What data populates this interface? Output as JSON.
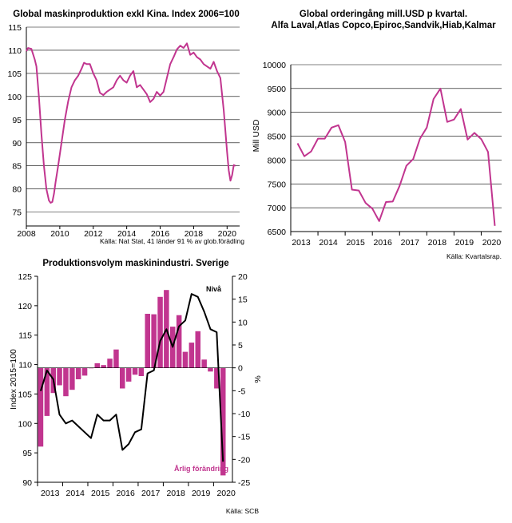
{
  "colors": {
    "magenta": "#c1358f",
    "black": "#000000",
    "axis": "#000000"
  },
  "chart_data": [
    {
      "type": "line",
      "title": "Global maskinproduktion exkl Kina. Index 2006=100",
      "source": "Källa: Nat Stat, 41 länder 91 % av glob.förädling",
      "xlim": [
        2008,
        2020.75
      ],
      "ylim": [
        72,
        115
      ],
      "x_ticks": [
        "2008",
        "2010",
        "2012",
        "2014",
        "2016",
        "2018",
        "2020"
      ],
      "x_tick_values": [
        2008,
        2010,
        2012,
        2014,
        2016,
        2018,
        2020
      ],
      "y_ticks": [
        "75",
        "80",
        "85",
        "90",
        "95",
        "100",
        "105",
        "110",
        "115"
      ],
      "y_tick_values": [
        75,
        80,
        85,
        90,
        95,
        100,
        105,
        110,
        115
      ],
      "series": [
        {
          "name": "Global maskinproduktion",
          "x": [
            2008.0,
            2008.1,
            2008.3,
            2008.5,
            2008.6,
            2008.75,
            2008.9,
            2009.05,
            2009.2,
            2009.35,
            2009.45,
            2009.55,
            2009.65,
            2009.75,
            2009.9,
            2010.1,
            2010.3,
            2010.5,
            2010.7,
            2010.9,
            2011.1,
            2011.3,
            2011.45,
            2011.6,
            2011.8,
            2012.0,
            2012.2,
            2012.4,
            2012.6,
            2012.8,
            2013.0,
            2013.2,
            2013.4,
            2013.6,
            2013.8,
            2014.0,
            2014.2,
            2014.4,
            2014.6,
            2014.8,
            2015.0,
            2015.2,
            2015.4,
            2015.6,
            2015.8,
            2016.0,
            2016.2,
            2016.4,
            2016.6,
            2016.8,
            2017.0,
            2017.2,
            2017.4,
            2017.6,
            2017.8,
            2018.0,
            2018.2,
            2018.4,
            2018.6,
            2018.8,
            2019.0,
            2019.2,
            2019.4,
            2019.6,
            2019.8,
            2020.0,
            2020.1,
            2020.2,
            2020.3,
            2020.4,
            2020.5
          ],
          "values": [
            109.8,
            110.5,
            110.3,
            108.0,
            106.5,
            100.0,
            92.0,
            85.0,
            80.0,
            77.5,
            77.0,
            77.2,
            79.0,
            81.5,
            85.0,
            90.0,
            95.0,
            99.0,
            102.0,
            103.5,
            104.5,
            106.0,
            107.3,
            107.0,
            107.0,
            105.0,
            103.5,
            100.8,
            100.3,
            101.0,
            101.5,
            102.0,
            103.5,
            104.5,
            103.5,
            103.0,
            104.5,
            105.5,
            102.0,
            102.5,
            101.5,
            100.5,
            98.8,
            99.5,
            101.0,
            100.2,
            101.0,
            104.0,
            107.0,
            108.5,
            110.2,
            111.0,
            110.5,
            111.5,
            109.0,
            109.5,
            108.5,
            108.0,
            107.0,
            106.5,
            106.0,
            107.5,
            105.5,
            104.0,
            97.0,
            88.0,
            84.0,
            81.8,
            83.0,
            85.2,
            85.0
          ]
        }
      ]
    },
    {
      "type": "line",
      "title_lines": [
        "Global orderingång mill.USD p kvartal.",
        "Alfa Laval,Atlas Copco,Epiroc,Sandvik,Hiab,Kalmar"
      ],
      "ylabel": "Mill USD",
      "source": "Källa: Kvartalsrap.",
      "xlim": [
        2012.75,
        2020.5
      ],
      "ylim": [
        6500,
        10000
      ],
      "x_ticks": [
        "2013",
        "2014",
        "2015",
        "2016",
        "2017",
        "2018",
        "2019",
        "2020"
      ],
      "x_tick_values": [
        2013.25,
        2014.25,
        2015.25,
        2016.25,
        2017.25,
        2018.25,
        2019.25,
        2020.25
      ],
      "y_ticks": [
        "6500",
        "7000",
        "7500",
        "8000",
        "8500",
        "9000",
        "9500",
        "10000"
      ],
      "y_tick_values": [
        6500,
        7000,
        7500,
        8000,
        8500,
        9000,
        9500,
        10000
      ],
      "series": [
        {
          "name": "Orderingång",
          "x": [
            2013.0,
            2013.25,
            2013.5,
            2013.75,
            2014.0,
            2014.25,
            2014.5,
            2014.75,
            2015.0,
            2015.25,
            2015.5,
            2015.75,
            2016.0,
            2016.25,
            2016.5,
            2016.75,
            2017.0,
            2017.25,
            2017.5,
            2017.75,
            2018.0,
            2018.25,
            2018.5,
            2018.75,
            2019.0,
            2019.25,
            2019.5,
            2019.75,
            2020.0,
            2020.25
          ],
          "values": [
            8350,
            8080,
            8180,
            8450,
            8450,
            8680,
            8730,
            8380,
            7380,
            7360,
            7100,
            6980,
            6720,
            7120,
            7130,
            7460,
            7880,
            8020,
            8450,
            8680,
            9280,
            9500,
            8800,
            8850,
            9070,
            8430,
            8570,
            8440,
            8170,
            6620
          ]
        }
      ]
    },
    {
      "type": "bar+line",
      "title": "Produktionsvolym maskinindustri. Sverige",
      "ylabel_left": "Index 2015=100",
      "ylabel_right": "%",
      "source": "Källa: SCB",
      "xlim": [
        2012.75,
        2020.5
      ],
      "ylim_left": [
        90,
        125
      ],
      "ylim_right": [
        -25,
        20
      ],
      "x_ticks": [
        "2013",
        "2014",
        "2015",
        "2016",
        "2017",
        "2018",
        "2019",
        "2020"
      ],
      "x_tick_values": [
        2013.25,
        2014.25,
        2015.25,
        2016.25,
        2017.25,
        2018.25,
        2019.25,
        2020.25
      ],
      "y_ticks_left": [
        "90",
        "95",
        "100",
        "105",
        "110",
        "115",
        "120",
        "125"
      ],
      "y_tick_values_left": [
        90,
        95,
        100,
        105,
        110,
        115,
        120,
        125
      ],
      "y_ticks_right": [
        "-25",
        "-20",
        "-15",
        "-10",
        "-5",
        "0",
        "5",
        "10",
        "15",
        "20"
      ],
      "y_tick_values_right": [
        -25,
        -20,
        -15,
        -10,
        -5,
        0,
        5,
        10,
        15,
        20
      ],
      "annotation_level": "Nivå",
      "annotation_change": "Årlig förändring",
      "bar_x": [
        2012.875,
        2013.125,
        2013.375,
        2013.625,
        2013.875,
        2014.125,
        2014.375,
        2014.625,
        2014.875,
        2015.125,
        2015.375,
        2015.625,
        2015.875,
        2016.125,
        2016.375,
        2016.625,
        2016.875,
        2017.125,
        2017.375,
        2017.625,
        2017.875,
        2018.125,
        2018.375,
        2018.625,
        2018.875,
        2019.125,
        2019.375,
        2019.625,
        2019.875,
        2020.125
      ],
      "bars_pct": [
        -17.2,
        -10.5,
        -5.5,
        -3.8,
        -6.2,
        -4.8,
        -2.5,
        -1.7,
        0.0,
        1.0,
        0.6,
        2.0,
        4.0,
        -4.5,
        -3.0,
        -1.5,
        -1.8,
        11.8,
        11.7,
        15.5,
        17.0,
        9.0,
        11.5,
        3.5,
        5.5,
        8.0,
        1.8,
        -0.8,
        -4.5,
        -23.5
      ],
      "line_x": [
        2012.875,
        2013.125,
        2013.375,
        2013.625,
        2013.875,
        2014.125,
        2014.375,
        2014.625,
        2014.875,
        2015.125,
        2015.375,
        2015.625,
        2015.875,
        2016.125,
        2016.375,
        2016.625,
        2016.875,
        2017.125,
        2017.375,
        2017.625,
        2017.875,
        2018.125,
        2018.375,
        2018.625,
        2018.875,
        2019.125,
        2019.375,
        2019.625,
        2019.875,
        2020.125
      ],
      "line_index": [
        105.5,
        109.0,
        107.5,
        101.5,
        100.0,
        100.5,
        99.5,
        98.5,
        97.5,
        101.5,
        100.5,
        100.5,
        101.5,
        95.5,
        96.5,
        98.5,
        99.0,
        108.5,
        109.0,
        114.0,
        116.0,
        113.0,
        116.5,
        117.5,
        122.0,
        121.5,
        119.0,
        116.0,
        115.5,
        93.5
      ]
    }
  ]
}
